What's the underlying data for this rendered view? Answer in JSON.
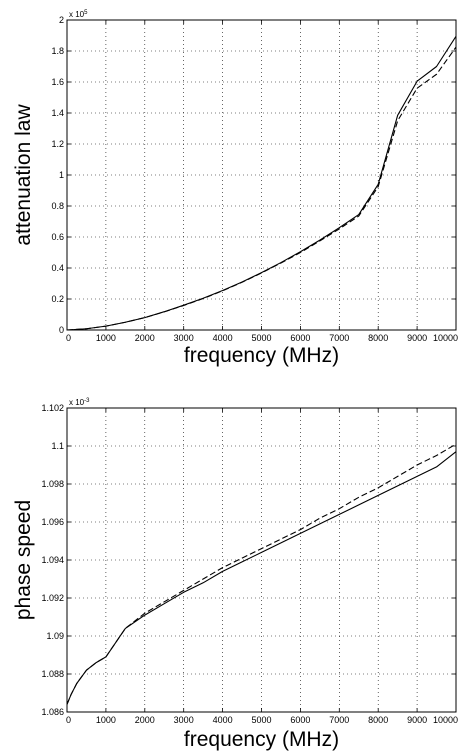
{
  "chart_data": [
    {
      "type": "line",
      "title": "",
      "xlabel": "frequency (MHz)",
      "ylabel": "attenuation law",
      "xlim": [
        0,
        10000
      ],
      "ylim": [
        0,
        2
      ],
      "y_multiplier": {
        "base": "x 10",
        "exponent": "5"
      },
      "grid": true,
      "x_ticks": [
        "0",
        "1000",
        "2000",
        "3000",
        "4000",
        "5000",
        "6000",
        "7000",
        "8000",
        "9000",
        "10000"
      ],
      "y_ticks": [
        "0",
        "0.2",
        "0.4",
        "0.6",
        "0.8",
        "1",
        "1.2",
        "1.4",
        "1.6",
        "1.8",
        "2"
      ],
      "x": [
        0,
        500,
        1000,
        1500,
        2000,
        2500,
        3000,
        3500,
        4000,
        4500,
        5000,
        5500,
        6000,
        6500,
        7000,
        7500,
        8000,
        8500,
        9000,
        9500,
        10000
      ],
      "series": [
        {
          "style": "solid",
          "color": "#000000",
          "values": [
            0,
            0.008,
            0.025,
            0.05,
            0.08,
            0.118,
            0.16,
            0.205,
            0.255,
            0.31,
            0.37,
            0.435,
            0.505,
            0.58,
            0.66,
            0.745,
            0.94,
            1.385,
            1.605,
            1.7,
            1.895
          ]
        },
        {
          "style": "dashed",
          "color": "#000000",
          "values": [
            0,
            0.008,
            0.025,
            0.05,
            0.08,
            0.117,
            0.158,
            0.203,
            0.253,
            0.308,
            0.368,
            0.432,
            0.5,
            0.575,
            0.652,
            0.735,
            0.925,
            1.35,
            1.56,
            1.65,
            1.825
          ]
        }
      ]
    },
    {
      "type": "line",
      "title": "",
      "xlabel": "frequency (MHz)",
      "ylabel": "phase speed",
      "xlim": [
        0,
        10000
      ],
      "ylim": [
        1.086,
        1.102
      ],
      "y_multiplier": {
        "base": "x 10",
        "exponent": "-3"
      },
      "grid": true,
      "x_ticks": [
        "0",
        "1000",
        "2000",
        "3000",
        "4000",
        "5000",
        "6000",
        "7000",
        "8000",
        "9000",
        "10000"
      ],
      "y_ticks": [
        "1.086",
        "1.088",
        "1.09",
        "1.092",
        "1.094",
        "1.096",
        "1.098",
        "1.1",
        "1.102"
      ],
      "x": [
        0,
        100,
        250,
        500,
        750,
        1000,
        1500,
        2000,
        2500,
        3000,
        3500,
        4000,
        4500,
        5000,
        5500,
        6000,
        6500,
        7000,
        7500,
        8000,
        8500,
        9000,
        9500,
        10000
      ],
      "series": [
        {
          "style": "solid",
          "color": "#000000",
          "values": [
            1.0864,
            1.0869,
            1.0875,
            1.0882,
            1.0886,
            1.0889,
            1.0904,
            1.0911,
            1.0917,
            1.0923,
            1.0928,
            1.0934,
            1.0939,
            1.0944,
            1.0949,
            1.0954,
            1.0959,
            1.0964,
            1.0969,
            1.0974,
            1.0979,
            1.0984,
            1.0989,
            1.0997
          ]
        },
        {
          "style": "dashed",
          "color": "#000000",
          "values": [
            1.0864,
            1.0869,
            1.0875,
            1.0882,
            1.0886,
            1.0889,
            1.0904,
            1.0912,
            1.0918,
            1.0924,
            1.093,
            1.0936,
            1.0941,
            1.0946,
            1.0951,
            1.0956,
            1.0962,
            1.0967,
            1.0973,
            1.0978,
            1.0984,
            1.099,
            1.0995,
            1.1001
          ]
        }
      ]
    }
  ]
}
